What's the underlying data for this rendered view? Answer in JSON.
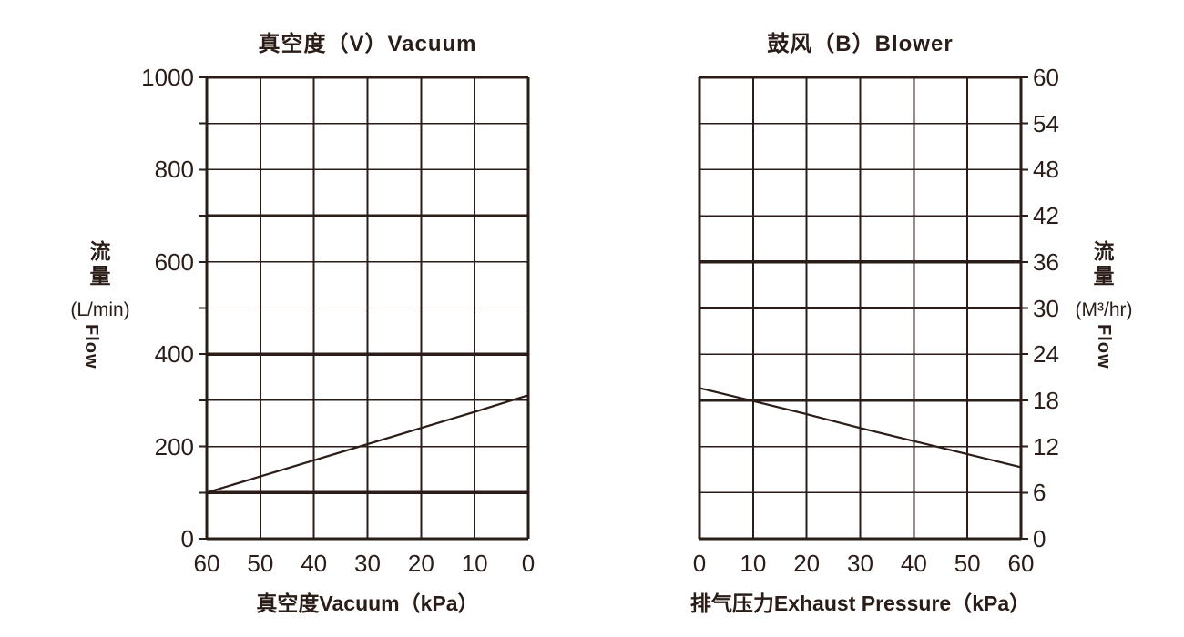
{
  "page": {
    "background": "#ffffff",
    "ink_color": "#2a1d18"
  },
  "chart_data": [
    {
      "type": "line",
      "title": "真空度（V）Vacuum",
      "xlabel": "真空度Vacuum（kPa）",
      "ylabel_cn": "流量",
      "ylabel_unit": "(L/min)",
      "ylabel_en": "Flow",
      "grid": true,
      "legend": "none",
      "x_axis": {
        "min": 0,
        "max": 60,
        "step": 10,
        "reversed": true,
        "tick_labels": [
          "60",
          "50",
          "40",
          "30",
          "20",
          "10",
          "0"
        ]
      },
      "y_axis": {
        "min": 0,
        "max": 1000,
        "grid_step": 100,
        "label_step": 200,
        "side": "left",
        "tick_labels": [
          "1000",
          "800",
          "600",
          "400",
          "200",
          "0"
        ],
        "thick_gridlines": [
          700,
          400,
          100
        ]
      },
      "series": [
        {
          "name": "flow-vs-vacuum",
          "x": [
            60,
            50,
            40,
            30,
            20,
            10,
            0
          ],
          "y": [
            100,
            135,
            170,
            205,
            240,
            275,
            311
          ]
        }
      ]
    },
    {
      "type": "line",
      "title": "鼓风（B）Blower",
      "xlabel": "排气压力Exhaust Pressure（kPa）",
      "ylabel_cn": "流量",
      "ylabel_unit": "(M³/hr)",
      "ylabel_en": "Flow",
      "grid": true,
      "legend": "none",
      "x_axis": {
        "min": 0,
        "max": 60,
        "step": 10,
        "reversed": false,
        "tick_labels": [
          "0",
          "10",
          "20",
          "30",
          "40",
          "50",
          "60"
        ]
      },
      "y_axis": {
        "min": 0,
        "max": 60,
        "grid_step": 6,
        "label_step": 6,
        "side": "right",
        "tick_labels": [
          "60",
          "54",
          "48",
          "42",
          "36",
          "30",
          "24",
          "18",
          "12",
          "6",
          "0"
        ],
        "thick_gridlines": [
          36,
          30,
          18
        ]
      },
      "series": [
        {
          "name": "flow-vs-exhaust-pressure",
          "x": [
            0,
            10,
            20,
            30,
            40,
            50,
            60
          ],
          "y": [
            19.6,
            17.9,
            16.2,
            14.4,
            12.7,
            11.0,
            9.3
          ]
        }
      ]
    }
  ]
}
